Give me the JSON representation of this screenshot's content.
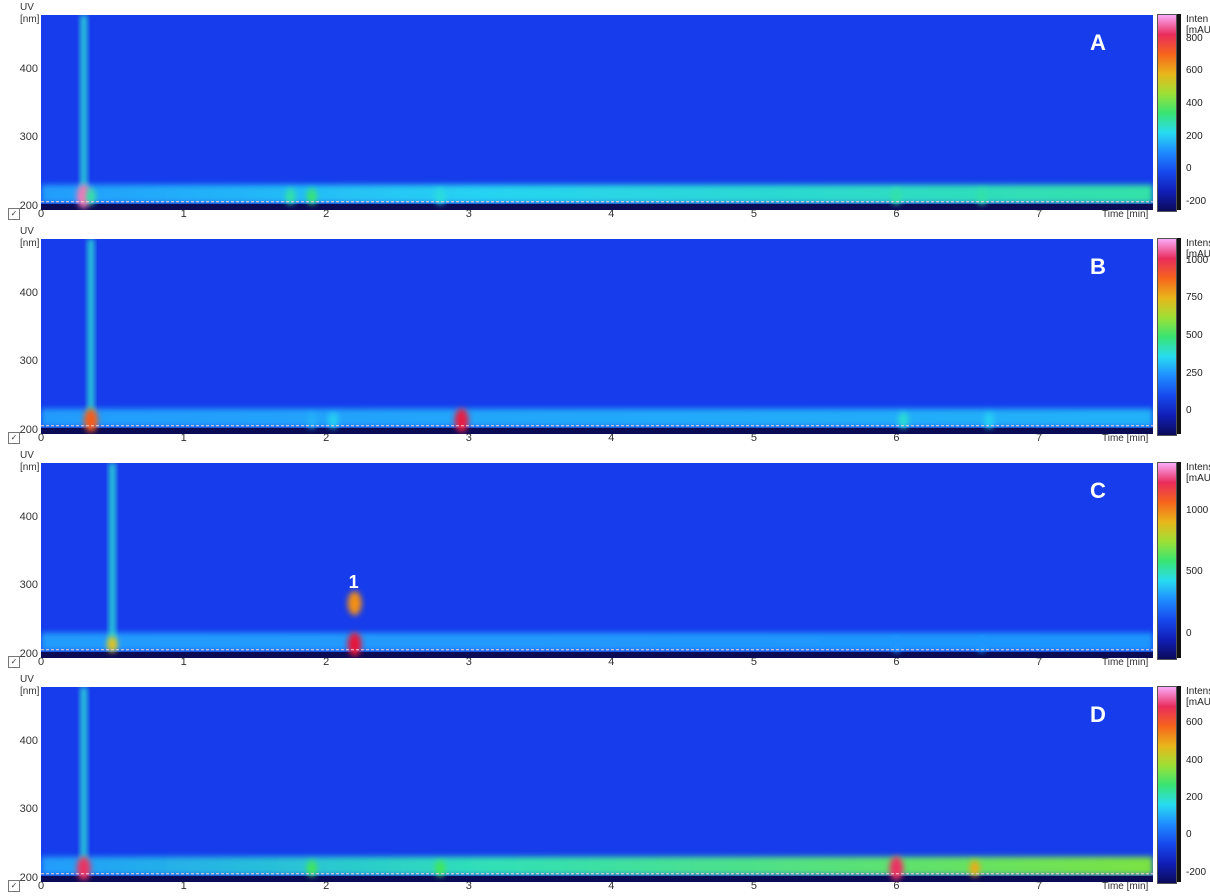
{
  "chart_data": [
    {
      "type": "heatmap",
      "panel_label": "A",
      "ylabel": "UV",
      "yunit": "[nm]",
      "xlabel": "Time [min]",
      "x_ticks": [
        "0",
        "1",
        "2",
        "3",
        "4",
        "5",
        "6",
        "7"
      ],
      "y_ticks": [
        "200",
        "300",
        "400"
      ],
      "xlim": [
        0,
        7.8
      ],
      "ylim": [
        195,
        480
      ],
      "colorbar_label": "Inten",
      "colorbar_unit": "[mAU",
      "colorbar_ticks": [
        "800",
        "600",
        "400",
        "200",
        "0",
        "-200"
      ],
      "colorbar_range": [
        -250,
        950
      ],
      "baseline_band": {
        "start_min": 0.0,
        "end_min": 7.8,
        "max_intensity_end": 300
      },
      "peaks": [
        {
          "time": 0.3,
          "wavelength": 215,
          "intensity": 900
        },
        {
          "time": 0.35,
          "wavelength": 215,
          "intensity": 300
        },
        {
          "time": 1.75,
          "wavelength": 215,
          "intensity": 300
        },
        {
          "time": 1.9,
          "wavelength": 215,
          "intensity": 350
        },
        {
          "time": 2.8,
          "wavelength": 215,
          "intensity": 250
        },
        {
          "time": 6.0,
          "wavelength": 215,
          "intensity": 300
        },
        {
          "time": 6.6,
          "wavelength": 215,
          "intensity": 300
        }
      ]
    },
    {
      "type": "heatmap",
      "panel_label": "B",
      "ylabel": "UV",
      "yunit": "[nm]",
      "xlabel": "Time [min]",
      "x_ticks": [
        "0",
        "1",
        "2",
        "3",
        "4",
        "5",
        "6",
        "7"
      ],
      "y_ticks": [
        "200",
        "300",
        "400"
      ],
      "xlim": [
        0,
        7.8
      ],
      "ylim": [
        195,
        480
      ],
      "colorbar_label": "Intens",
      "colorbar_unit": "[mAU]",
      "colorbar_ticks": [
        "1000",
        "750",
        "500",
        "250",
        "0"
      ],
      "colorbar_range": [
        -150,
        1150
      ],
      "baseline_band": {
        "start_min": 0.0,
        "end_min": 7.8,
        "max_intensity_end": 300
      },
      "peaks": [
        {
          "time": 0.35,
          "wavelength": 215,
          "intensity": 900
        },
        {
          "time": 1.9,
          "wavelength": 215,
          "intensity": 300
        },
        {
          "time": 2.05,
          "wavelength": 215,
          "intensity": 350
        },
        {
          "time": 2.95,
          "wavelength": 215,
          "intensity": 1000
        },
        {
          "time": 6.05,
          "wavelength": 215,
          "intensity": 400
        },
        {
          "time": 6.65,
          "wavelength": 215,
          "intensity": 350
        }
      ]
    },
    {
      "type": "heatmap",
      "panel_label": "C",
      "ylabel": "UV",
      "yunit": "[nm]",
      "xlabel": "Time [min]",
      "x_ticks": [
        "0",
        "1",
        "2",
        "3",
        "4",
        "5",
        "6",
        "7"
      ],
      "y_ticks": [
        "200",
        "300",
        "400"
      ],
      "xlim": [
        0,
        7.8
      ],
      "ylim": [
        195,
        480
      ],
      "colorbar_label": "Intens",
      "colorbar_unit": "[mAU",
      "colorbar_ticks": [
        "1000",
        "500",
        "0"
      ],
      "colorbar_range": [
        -200,
        1400
      ],
      "baseline_band": {
        "start_min": 0.0,
        "end_min": 7.8,
        "max_intensity_end": 300
      },
      "annotation": "1",
      "peaks": [
        {
          "time": 0.5,
          "wavelength": 215,
          "intensity": 900
        },
        {
          "time": 2.2,
          "wavelength": 215,
          "intensity": 1200
        },
        {
          "time": 2.2,
          "wavelength": 275,
          "intensity": 1000
        },
        {
          "time": 6.0,
          "wavelength": 215,
          "intensity": 300
        },
        {
          "time": 6.6,
          "wavelength": 215,
          "intensity": 300
        }
      ]
    },
    {
      "type": "heatmap",
      "panel_label": "D",
      "ylabel": "UV",
      "yunit": "[nm]",
      "xlabel": "Time [min]",
      "x_ticks": [
        "0",
        "1",
        "2",
        "3",
        "4",
        "5",
        "6",
        "7"
      ],
      "y_ticks": [
        "200",
        "300",
        "400"
      ],
      "xlim": [
        0,
        7.8
      ],
      "ylim": [
        195,
        480
      ],
      "colorbar_label": "Intens",
      "colorbar_unit": "[mAU",
      "colorbar_ticks": [
        "600",
        "400",
        "200",
        "0",
        "-200"
      ],
      "colorbar_range": [
        -250,
        800
      ],
      "baseline_band": {
        "start_min": 0.0,
        "end_min": 7.8,
        "max_intensity_end": 350
      },
      "peaks": [
        {
          "time": 0.3,
          "wavelength": 215,
          "intensity": 700
        },
        {
          "time": 1.9,
          "wavelength": 215,
          "intensity": 300
        },
        {
          "time": 2.8,
          "wavelength": 215,
          "intensity": 300
        },
        {
          "time": 6.0,
          "wavelength": 215,
          "intensity": 700
        },
        {
          "time": 6.55,
          "wavelength": 215,
          "intensity": 500
        }
      ]
    }
  ]
}
